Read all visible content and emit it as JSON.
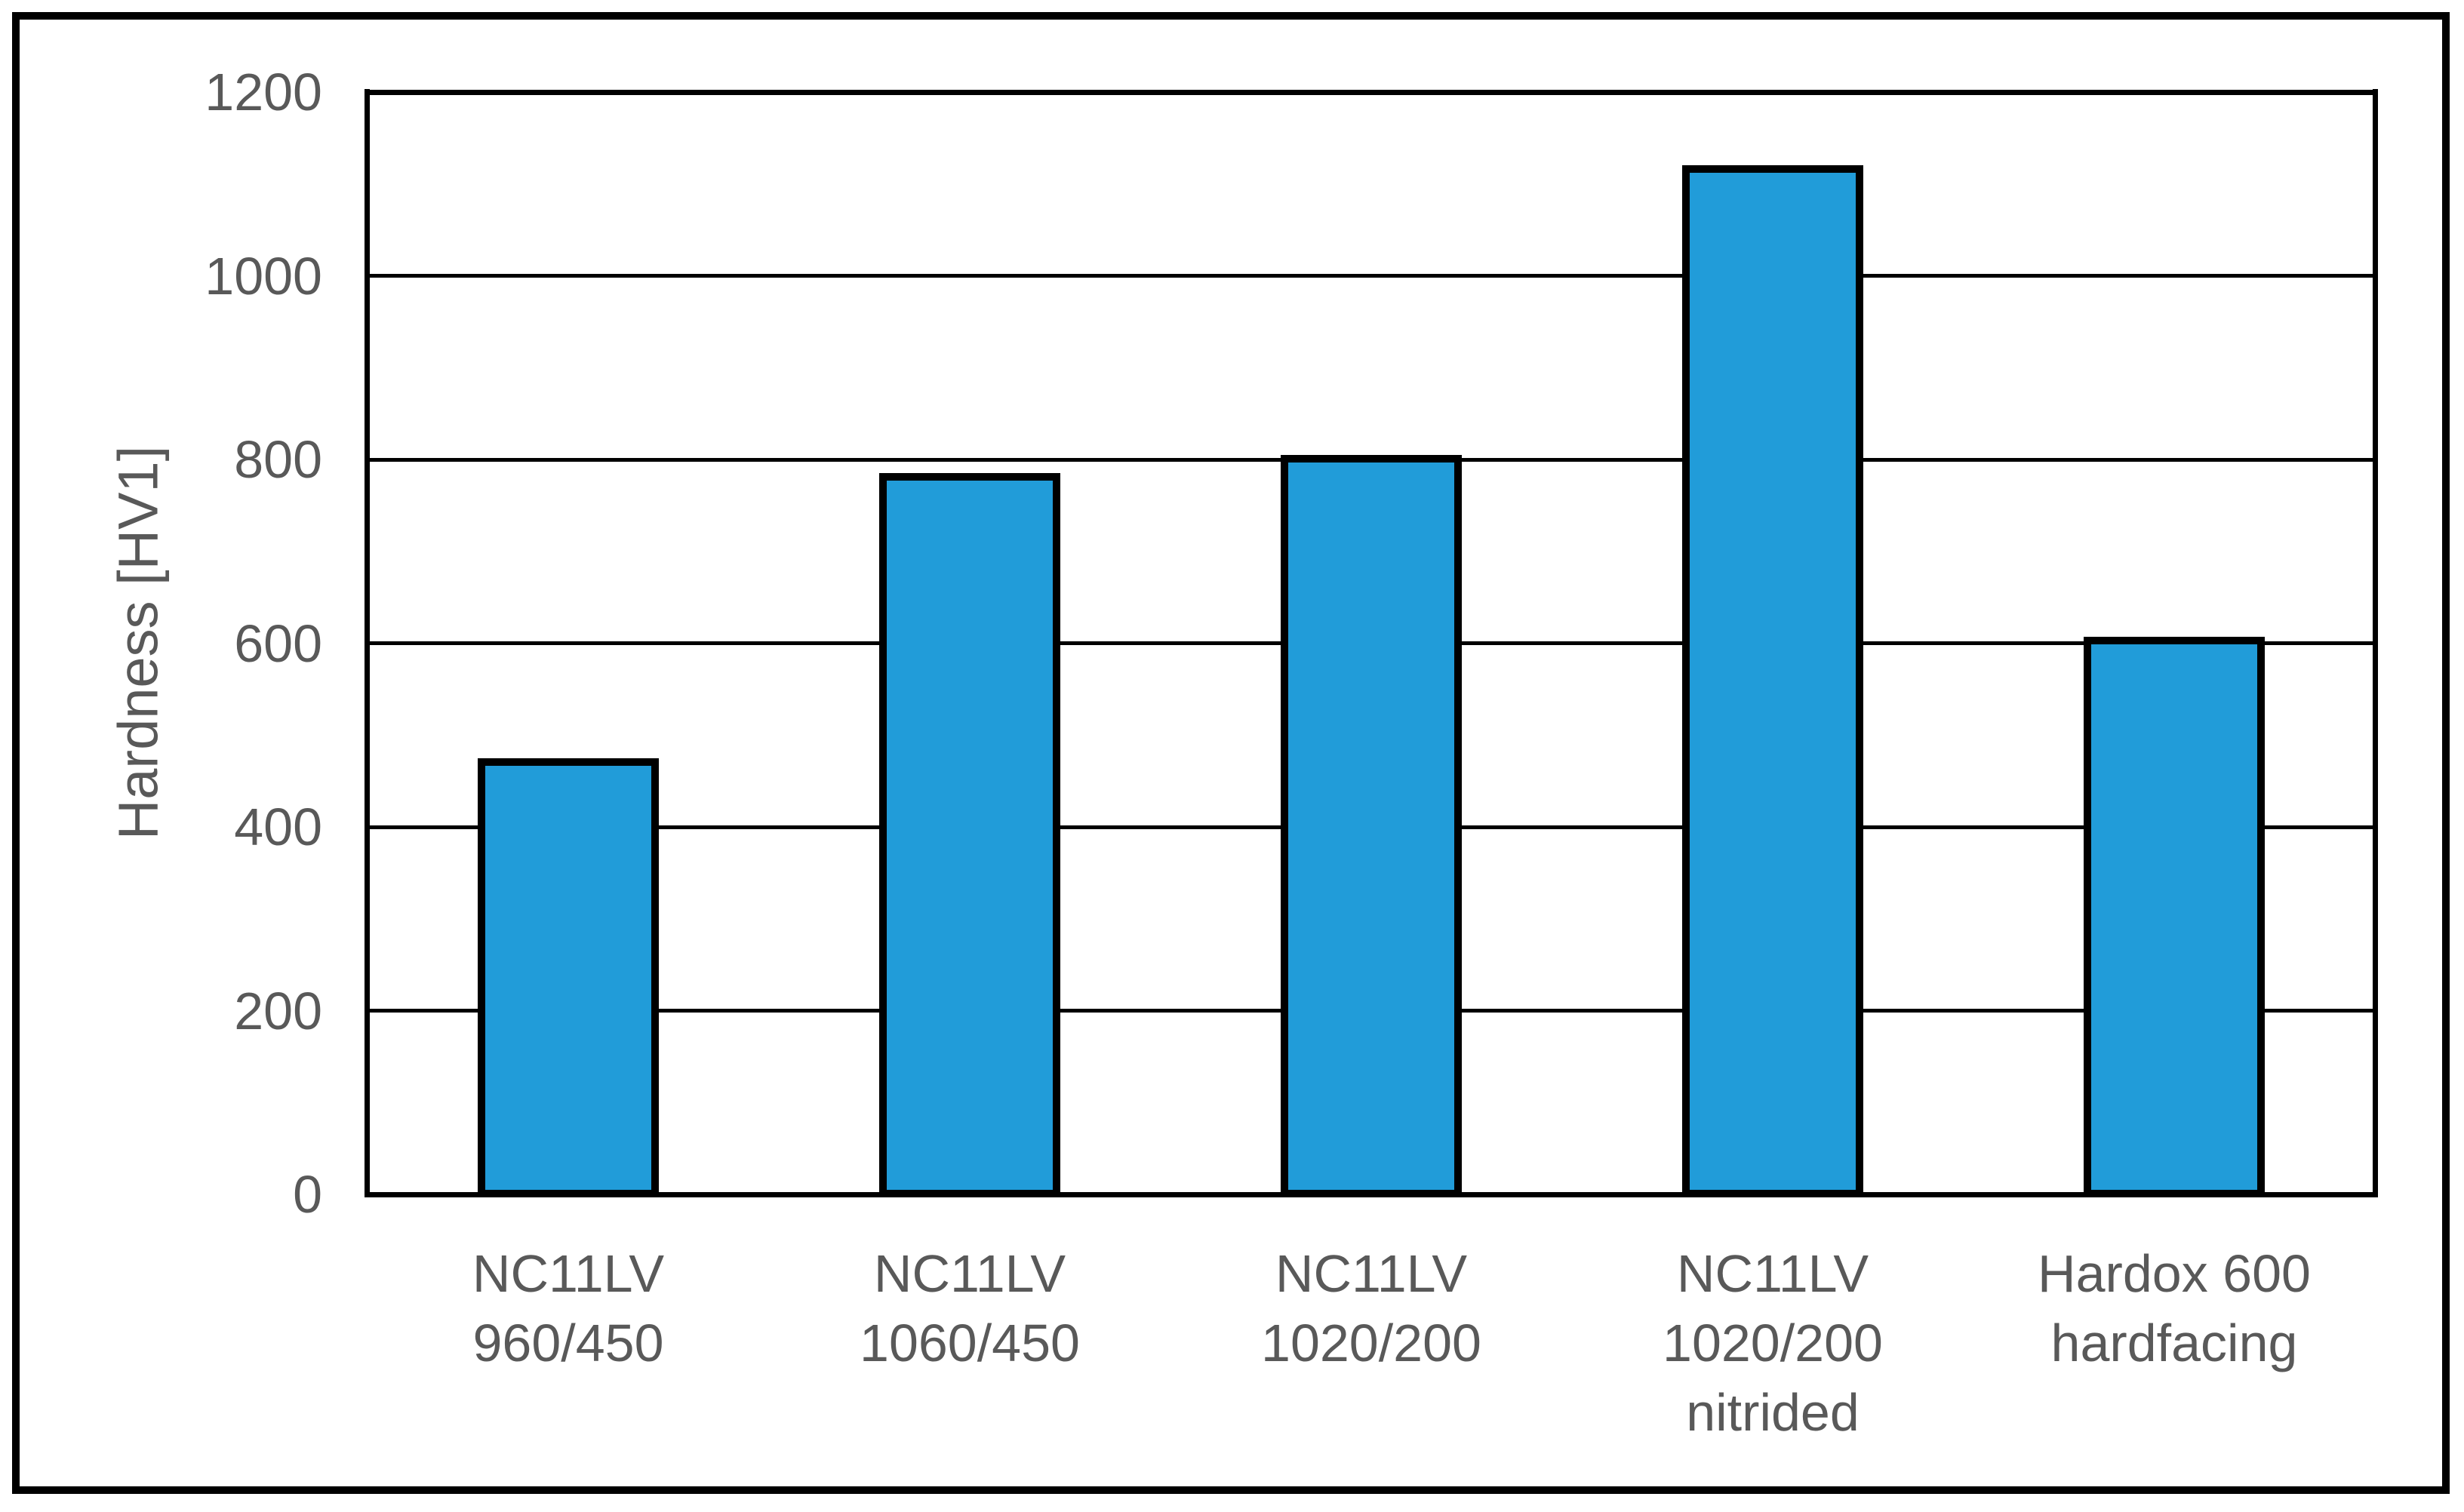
{
  "figure": {
    "background": "#FFFFFF",
    "frame_color": "#000000"
  },
  "chart_data": {
    "type": "bar",
    "title": "",
    "xlabel": "",
    "ylabel": "Hardness [HV1]",
    "categories": [
      [
        "NC11LV",
        "960/450"
      ],
      [
        "NC11LV",
        "1060/450"
      ],
      [
        "NC11LV",
        "1020/200"
      ],
      [
        "NC11LV",
        "1020/200",
        "nitrided"
      ],
      [
        "Hardox 600",
        "hardfacing"
      ]
    ],
    "values": [
      475,
      785,
      805,
      1120,
      607
    ],
    "ylim": [
      0,
      1200
    ],
    "yticks": [
      0,
      200,
      400,
      600,
      800,
      1000,
      1200
    ],
    "grid": true,
    "legend": false,
    "bar_fill": "#219CD9",
    "bar_outline": "#000000",
    "gridline_color": "#000000",
    "axis_line_color": "#000000",
    "text_color": "#595959"
  }
}
